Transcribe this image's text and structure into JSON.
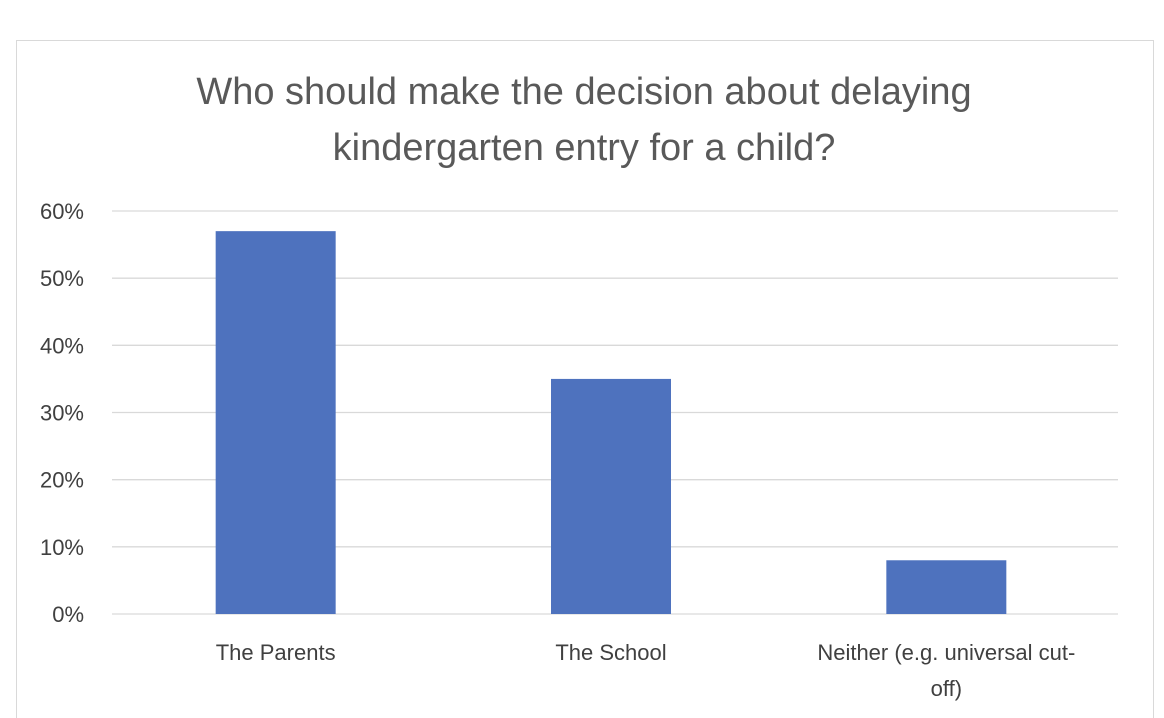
{
  "chart_data": {
    "type": "bar",
    "title": "Who should make the decision about delaying kindergarten entry for a child?",
    "title_lines": [
      "Who should make the decision about delaying",
      "kindergarten entry for a child?"
    ],
    "categories": [
      "The Parents",
      "The School",
      "Neither (e.g. universal cut-off)"
    ],
    "category_label_lines": [
      [
        "The Parents"
      ],
      [
        "The School"
      ],
      [
        "Neither (e.g. universal cut-",
        "off)"
      ]
    ],
    "values": [
      0.57,
      0.35,
      0.08
    ],
    "ylim": [
      0,
      0.6
    ],
    "yticks": [
      0,
      0.1,
      0.2,
      0.3,
      0.4,
      0.5,
      0.6
    ],
    "ytick_labels": [
      "0%",
      "10%",
      "20%",
      "30%",
      "40%",
      "50%",
      "60%"
    ],
    "xlabel": "",
    "ylabel": "",
    "grid": true,
    "legend": false,
    "bar_color": "#4e72be",
    "grid_color": "#d9d9d9"
  }
}
